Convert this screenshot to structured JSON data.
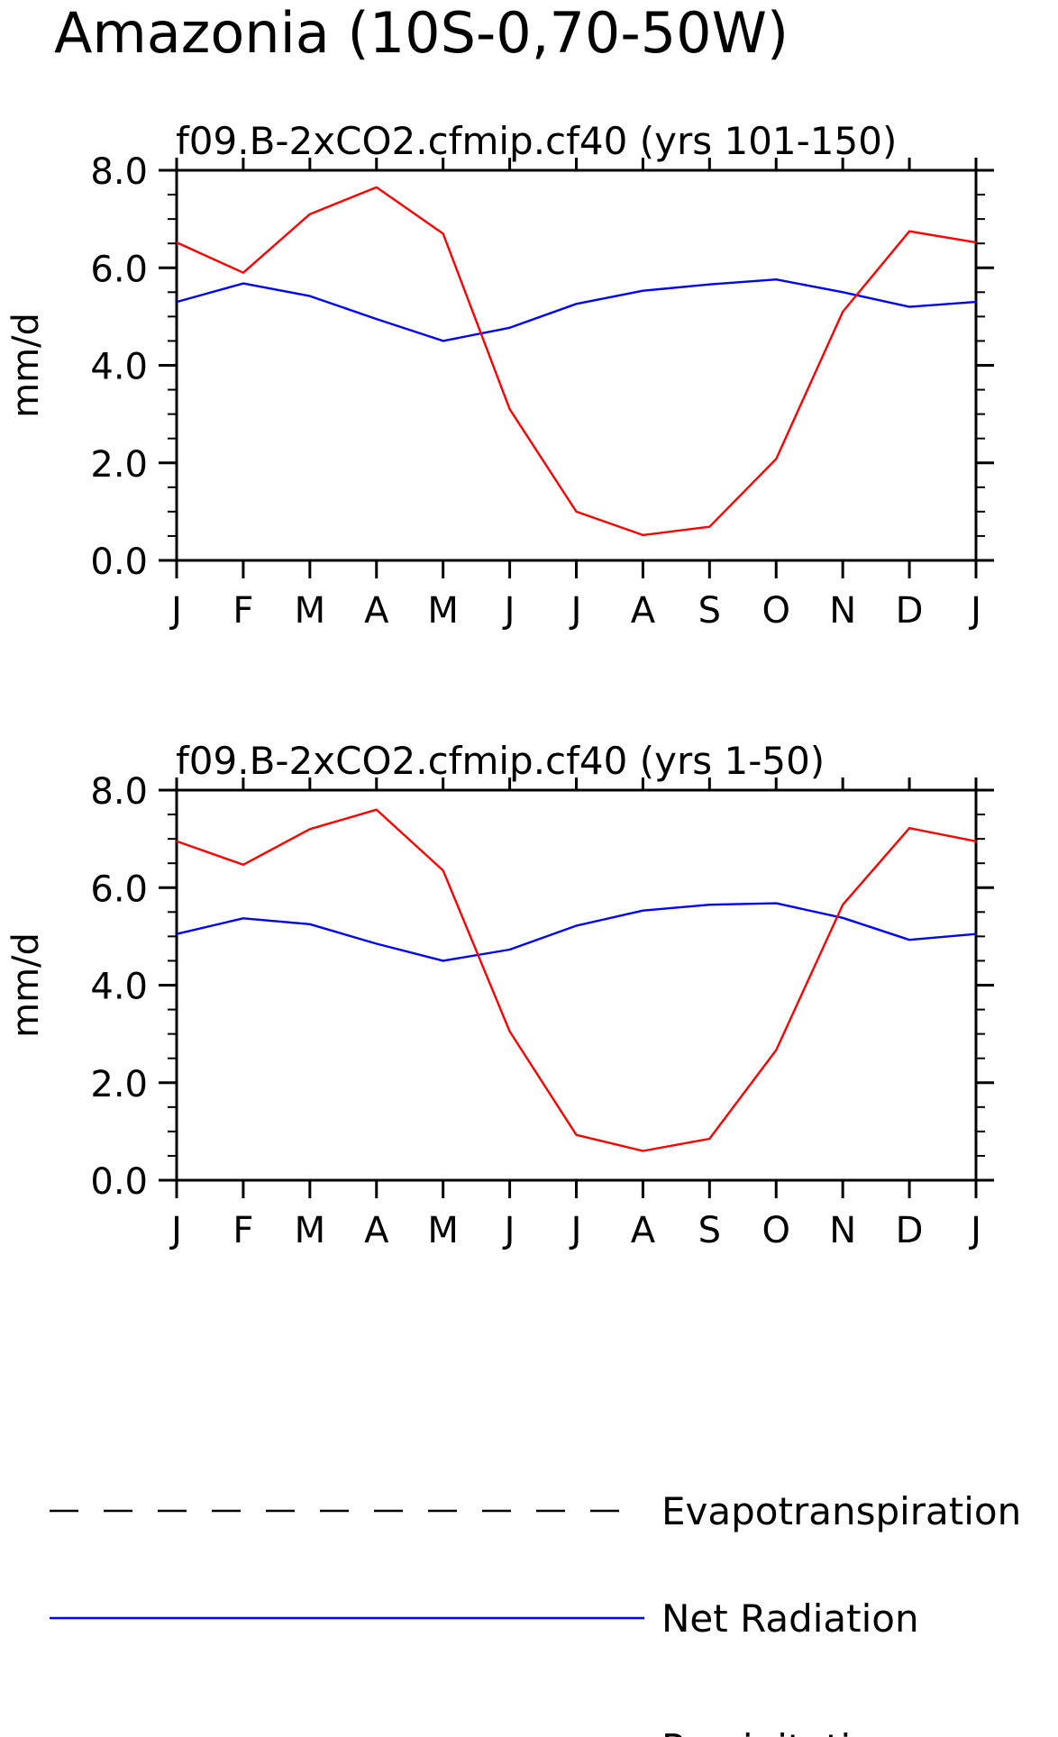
{
  "figure": {
    "title": "Amazonia (10S-0,70-50W)"
  },
  "colors": {
    "evapotranspiration": "#000000",
    "net_radiation": "#0000ff",
    "precipitation": "#ff0000",
    "axes": "#000000"
  },
  "legend": {
    "placement": "bottom",
    "entries": [
      {
        "label": "Evapotranspiration",
        "style": "dashed",
        "color": "#000000"
      },
      {
        "label": "Net Radiation",
        "style": "solid",
        "color": "#0000ff"
      },
      {
        "label": "Precipitation",
        "style": "solid",
        "color": "#ff0000"
      }
    ]
  },
  "chart_data": [
    {
      "type": "line",
      "title": "f09.B-2xCO2.cfmip.cf40 (yrs 101-150)",
      "ylabel": "mm/d",
      "xlabel": "",
      "ylim": [
        0,
        8
      ],
      "yticks": [
        "0.0",
        "2.0",
        "4.0",
        "6.0",
        "8.0"
      ],
      "categories": [
        "J",
        "F",
        "M",
        "A",
        "M",
        "J",
        "J",
        "A",
        "S",
        "O",
        "N",
        "D",
        "J"
      ],
      "grid": false,
      "series": [
        {
          "name": "Net Radiation",
          "values": [
            5.3,
            5.68,
            5.42,
            4.95,
            4.5,
            4.77,
            5.26,
            5.53,
            5.66,
            5.76,
            5.5,
            5.2,
            5.3
          ]
        },
        {
          "name": "Precipitation",
          "values": [
            6.52,
            5.9,
            7.1,
            7.65,
            6.7,
            3.1,
            1.0,
            0.52,
            0.69,
            2.08,
            5.1,
            6.75,
            6.52
          ]
        }
      ]
    },
    {
      "type": "line",
      "title": "f09.B-2xCO2.cfmip.cf40 (yrs 1-50)",
      "ylabel": "mm/d",
      "xlabel": "",
      "ylim": [
        0,
        8
      ],
      "yticks": [
        "0.0",
        "2.0",
        "4.0",
        "6.0",
        "8.0"
      ],
      "categories": [
        "J",
        "F",
        "M",
        "A",
        "M",
        "J",
        "J",
        "A",
        "S",
        "O",
        "N",
        "D",
        "J"
      ],
      "grid": false,
      "series": [
        {
          "name": "Net Radiation",
          "values": [
            5.05,
            5.37,
            5.25,
            4.85,
            4.5,
            4.73,
            5.22,
            5.53,
            5.65,
            5.68,
            5.38,
            4.93,
            5.05
          ]
        },
        {
          "name": "Precipitation",
          "values": [
            6.95,
            6.47,
            7.2,
            7.6,
            6.35,
            3.05,
            0.93,
            0.6,
            0.85,
            2.67,
            5.65,
            7.22,
            6.95
          ]
        }
      ]
    }
  ]
}
